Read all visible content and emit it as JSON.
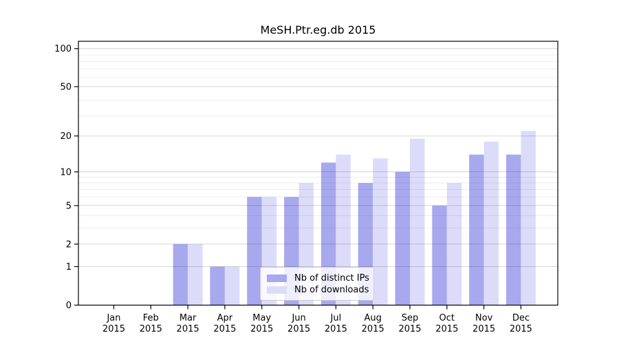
{
  "figure": {
    "background": "#ffffff",
    "text_color": "#000000",
    "spine_color": "#000000",
    "major_grid_color": "rgba(0,0,0,0.16)",
    "minor_grid_color": "rgba(0,0,0,0.07)"
  },
  "chart_data": {
    "type": "bar",
    "title": "MeSH.Ptr.eg.db 2015",
    "categories": [
      "Jan",
      "Feb",
      "Mar",
      "Apr",
      "May",
      "Jun",
      "Jul",
      "Aug",
      "Sep",
      "Oct",
      "Nov",
      "Dec"
    ],
    "category_year": "2015",
    "series": [
      {
        "name": "Nb of distinct IPs",
        "color": "#a8a8ee",
        "values": [
          0,
          0,
          2,
          1,
          6,
          6,
          12,
          8,
          10,
          5,
          14,
          14
        ]
      },
      {
        "name": "Nb of downloads",
        "color": "#dcdcfa",
        "values": [
          0,
          0,
          2,
          1,
          6,
          8,
          14,
          13,
          19,
          8,
          18,
          22
        ]
      }
    ],
    "xlabel": "",
    "ylabel": "",
    "y_axis": {
      "scale": "log10(1+value)",
      "tick_values": [
        0,
        1,
        2,
        5,
        10,
        20,
        50,
        100
      ],
      "tick_labels": [
        "0",
        "1",
        "2",
        "5",
        "10",
        "20",
        "50",
        "100"
      ],
      "minor_gridlines_at_1plusv": [
        4,
        5,
        7,
        8,
        9,
        10,
        30,
        40,
        60,
        70,
        80,
        90
      ],
      "ylim": [
        0,
        113
      ]
    },
    "grid": "horizontal",
    "legend_position": "lower-center-inside"
  }
}
